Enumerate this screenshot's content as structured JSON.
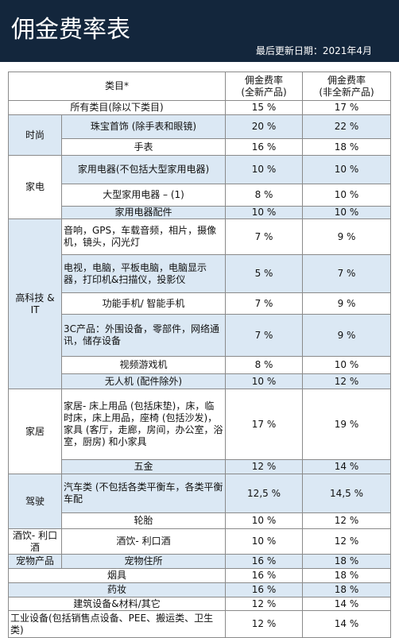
{
  "header": {
    "title": "佣金费率表",
    "updated": "最后更新日期：2021年4月"
  },
  "table": {
    "columns": [
      "类目*",
      "佣金费率\n(全新产品)",
      "佣金费率\n(非全新产品)"
    ],
    "rows": [
      {
        "category": "所有类目(除以下类目)",
        "rates": [
          "15 %",
          "17 %"
        ]
      },
      {
        "group": "时尚",
        "items": [
          {
            "category": "珠宝首饰 (除手表和眼镜)",
            "rates": [
              "20 %",
              "22 %"
            ]
          },
          {
            "category": "手表",
            "rates": [
              "16 %",
              "18 %"
            ]
          }
        ]
      },
      {
        "group": "家电",
        "items": [
          {
            "category": "家用电器(不包括大型家用电器)",
            "rates": [
              "10 %",
              "10 %"
            ]
          },
          {
            "category": "大型家用电器 – (1)",
            "rates": [
              "8 %",
              "10 %"
            ]
          },
          {
            "category": "家用电器配件",
            "rates": [
              "10 %",
              "10 %"
            ]
          }
        ]
      },
      {
        "group": "高科技 & IT",
        "items": [
          {
            "category": "音响，GPS，车载音频，相片，摄像机，镜头，闪光灯",
            "rates": [
              "7 %",
              "9 %"
            ]
          },
          {
            "category": "电视，电脑，平板电脑，电脑显示器，打印机&扫描仪，投影仪",
            "rates": [
              "5 %",
              "7 %"
            ]
          },
          {
            "category": "功能手机/ 智能手机",
            "rates": [
              "7 %",
              "9 %"
            ]
          },
          {
            "category": "3C产品：外围设备，零部件，网络通讯，储存设备",
            "rates": [
              "7 %",
              "9 %"
            ]
          },
          {
            "category": "视频游戏机",
            "rates": [
              "8 %",
              "10 %"
            ]
          },
          {
            "category": "无人机 (配件除外)",
            "rates": [
              "10 %",
              "12 %"
            ]
          }
        ]
      },
      {
        "group": "家居",
        "items": [
          {
            "category": "家居- 床上用品 (包括床垫)，床，临时床，床上用品，座椅 (包括沙发)，家具 (客厅，走廊，房间，办公室，浴室，厨房) 和小家具",
            "rates": [
              "17 %",
              "19 %"
            ]
          },
          {
            "category": "五金",
            "rates": [
              "12 %",
              "14 %"
            ]
          }
        ]
      },
      {
        "group": "驾驶",
        "items": [
          {
            "category": "汽车类 (不包括各类平衡车，各类平衡车配",
            "rates": [
              "12,5 %",
              "14,5 %"
            ]
          },
          {
            "category": "轮胎",
            "rates": [
              "10 %",
              "12 %"
            ]
          }
        ]
      },
      {
        "group": "酒饮- 利口酒",
        "items": [
          {
            "category": "酒饮- 利口酒",
            "rates": [
              "10 %",
              "12 %"
            ]
          }
        ]
      },
      {
        "group": "宠物产品",
        "items": [
          {
            "category": "宠物住所",
            "rates": [
              "16 %",
              "18 %"
            ]
          }
        ]
      },
      {
        "category": "烟具",
        "rates": [
          "16 %",
          "18 %"
        ]
      },
      {
        "category": "药妆",
        "rates": [
          "16 %",
          "18 %"
        ]
      },
      {
        "category": "建筑设备&材料/其它",
        "rates": [
          "12 %",
          "14 %"
        ]
      },
      {
        "category": "工业设备(包括销售点设备、PEE、搬运类、卫生类)",
        "rates": [
          "12 %",
          "14 %"
        ]
      }
    ]
  }
}
